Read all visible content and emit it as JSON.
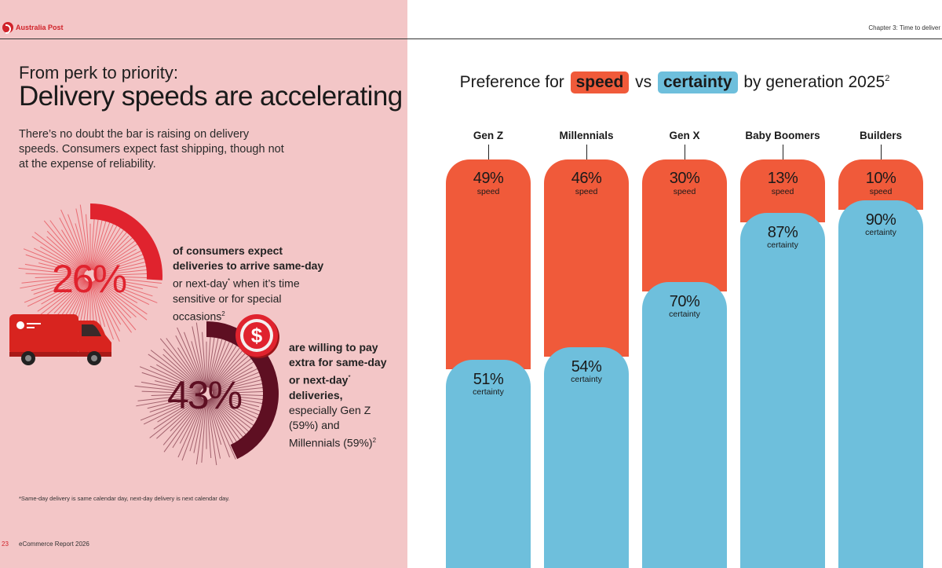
{
  "header": {
    "brand": "Australia Post",
    "chapter": "Chapter 3: Time to deliver"
  },
  "left": {
    "kicker": "From perk to priority:",
    "headline": "Delivery speeds are accelerating",
    "intro": "There’s no doubt the bar is raising on delivery speeds. Consumers expect fast shipping, though not at the expense of reliability.",
    "stat1": {
      "value": "26%",
      "fraction": 0.26,
      "bold": "of consumers expect deliveries to arrive same-day",
      "rest": " or next-day",
      "star": "*",
      "rest2": " when it’s time sensitive or for special occasions",
      "sup": "2"
    },
    "stat2": {
      "value": "43%",
      "fraction": 0.43,
      "bold": "are willing to pay extra for same-day or next-day",
      "star": "*",
      "bold2": " deliveries,",
      "rest": " especially Gen Z (59%) and Millennials (59%)",
      "sup": "2"
    },
    "footnote": "*Same-day delivery is same calendar day, next-day delivery is next calendar day.",
    "page_number": "23",
    "report_name": "eCommerce Report 2026"
  },
  "colors": {
    "speed": "#f05a3a",
    "certainty": "#6ebfdc",
    "stat1": "#e0232e",
    "stat2": "#5e0f22",
    "left_bg": "#f3c6c7"
  },
  "icons": [
    "australia-post-logo-icon",
    "van-icon",
    "dollar-coin-icon"
  ],
  "chart_data": {
    "type": "bar",
    "stacked": true,
    "title_parts": {
      "a": "Preference for",
      "speed": "speed",
      "vs": "vs",
      "certainty": "certainty",
      "b": "by generation 2025",
      "sup": "2"
    },
    "categories": [
      "Gen Z",
      "Millennials",
      "Gen X",
      "Baby Boomers",
      "Builders"
    ],
    "series": [
      {
        "name": "speed",
        "values": [
          49,
          46,
          30,
          13,
          10
        ],
        "labels": [
          "49%",
          "46%",
          "30%",
          "13%",
          "10%"
        ]
      },
      {
        "name": "certainty",
        "values": [
          51,
          54,
          70,
          87,
          90
        ],
        "labels": [
          "51%",
          "54%",
          "70%",
          "87%",
          "90%"
        ]
      }
    ],
    "unit": "%",
    "ylim": [
      0,
      100
    ],
    "grid": false
  }
}
